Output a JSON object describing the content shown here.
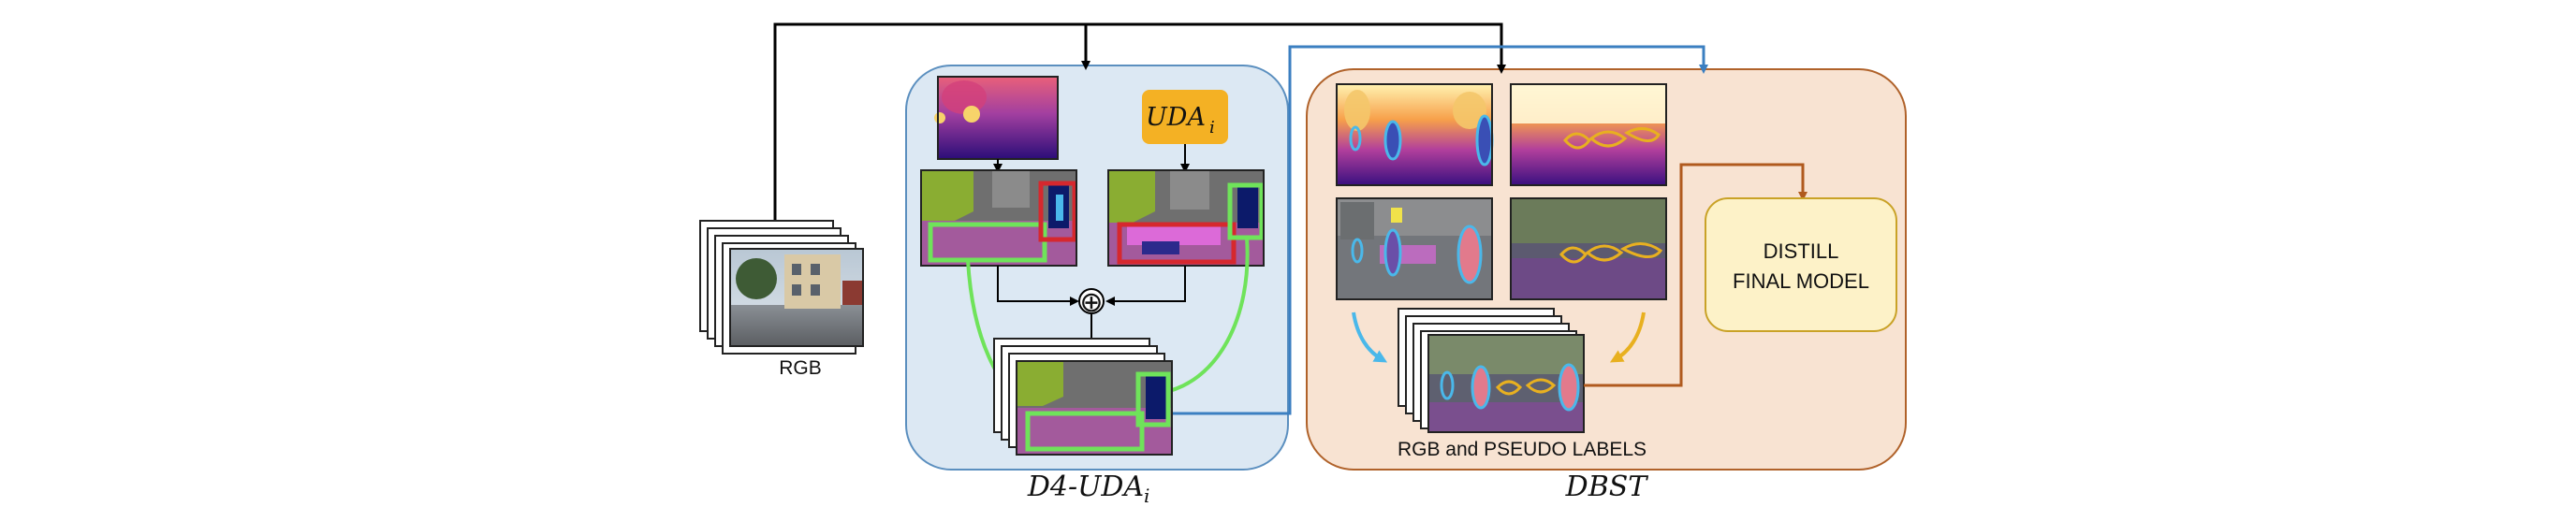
{
  "labels": {
    "rgb": "RGB",
    "uda_box": "UDA",
    "uda_sub": "i",
    "oplus": "⊕",
    "d4_uda": "D4-UDA",
    "d4_uda_sub": "i",
    "dbst": "DBST",
    "distill_line1": "DISTILL",
    "distill_line2": "FINAL MODEL",
    "pseudo": "RGB and PSEUDO LABELS"
  },
  "colors": {
    "uda_panel_fill": "#dce8f3",
    "uda_panel_stroke": "#5b8fbf",
    "dbst_panel_fill": "#f8e3d2",
    "dbst_panel_stroke": "#b0622a",
    "distill_fill": "#fdf2c8",
    "distill_stroke": "#c9a227",
    "uda_box_fill": "#f4b124",
    "blue_arrow": "#3b7fc1",
    "orange_arrow": "#b05a1e",
    "green": "#6fe35a",
    "red": "#d6282e",
    "yellow_outline": "#e8b020",
    "lightblue_outline": "#4ab8ea"
  }
}
